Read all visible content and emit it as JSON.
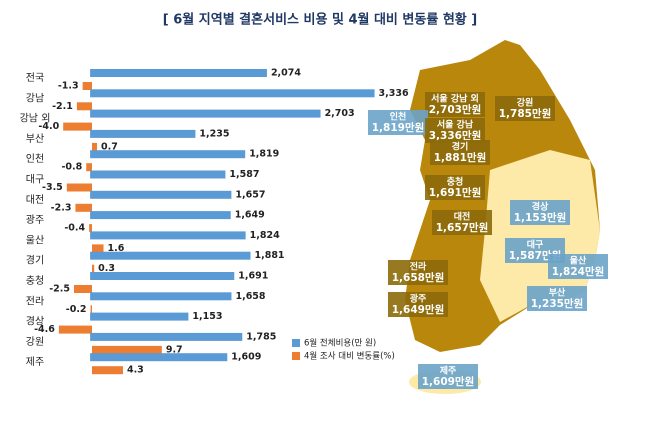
{
  "chart_data": {
    "type": "bar",
    "orientation": "horizontal",
    "title": "[ 6월 지역별 결혼서비스 비용 및 4월 대비 변동률 현황 ]",
    "categories": [
      "전국",
      "강남",
      "강남 외",
      "부산",
      "인천",
      "대구",
      "대전",
      "광주",
      "울산",
      "경기",
      "충청",
      "전라",
      "경상",
      "강원",
      "제주"
    ],
    "series": [
      {
        "name": "6월 전체비용(만 원)",
        "color": "#5b9bd5",
        "xlim": [
          -400,
          3400
        ],
        "values": [
          2074,
          3336,
          2703,
          1235,
          1819,
          1587,
          1657,
          1649,
          1824,
          1881,
          1691,
          1658,
          1153,
          1785,
          1609
        ],
        "value_labels": [
          "2,074",
          "3,336",
          "2,703",
          "1,235",
          "1,819",
          "1,587",
          "1,657",
          "1,649",
          "1,824",
          "1,881",
          "1,691",
          "1,658",
          "1,153",
          "1,785",
          "1,609"
        ]
      },
      {
        "name": "4월 조사 대비 변동률(%)",
        "color": "#ed7d31",
        "xlim": [
          -5,
          40
        ],
        "values": [
          -1.3,
          -2.1,
          -4.0,
          0.7,
          -0.8,
          -3.5,
          -2.3,
          -0.4,
          1.6,
          0.3,
          -2.5,
          -0.2,
          -4.6,
          9.7,
          4.3
        ],
        "value_labels": [
          "-1.3",
          "-2.1",
          "-4.0",
          "0.7",
          "-0.8",
          "-3.5",
          "-2.3",
          "-0.4",
          "1.6",
          "0.3",
          "-2.5",
          "-0.2",
          "-4.6",
          "9.7",
          "4.3"
        ]
      }
    ],
    "map_labels": [
      {
        "name": "서울 강남 외",
        "label": "2,703만원"
      },
      {
        "name": "강원",
        "label": "1,785만원"
      },
      {
        "name": "인천",
        "label": "1,819만원"
      },
      {
        "name": "서울 강남",
        "label": "3,336만원"
      },
      {
        "name": "경기",
        "label": "1,881만원"
      },
      {
        "name": "충청",
        "label": "1,691만원"
      },
      {
        "name": "경상",
        "label": "1,153만원"
      },
      {
        "name": "대전",
        "label": "1,657만원"
      },
      {
        "name": "대구",
        "label": "1,587만원"
      },
      {
        "name": "울산",
        "label": "1,824만원"
      },
      {
        "name": "전라",
        "label": "1,658만원"
      },
      {
        "name": "부산",
        "label": "1,235만원"
      },
      {
        "name": "광주",
        "label": "1,649만원"
      },
      {
        "name": "제주",
        "label": "1,609만원"
      }
    ]
  }
}
